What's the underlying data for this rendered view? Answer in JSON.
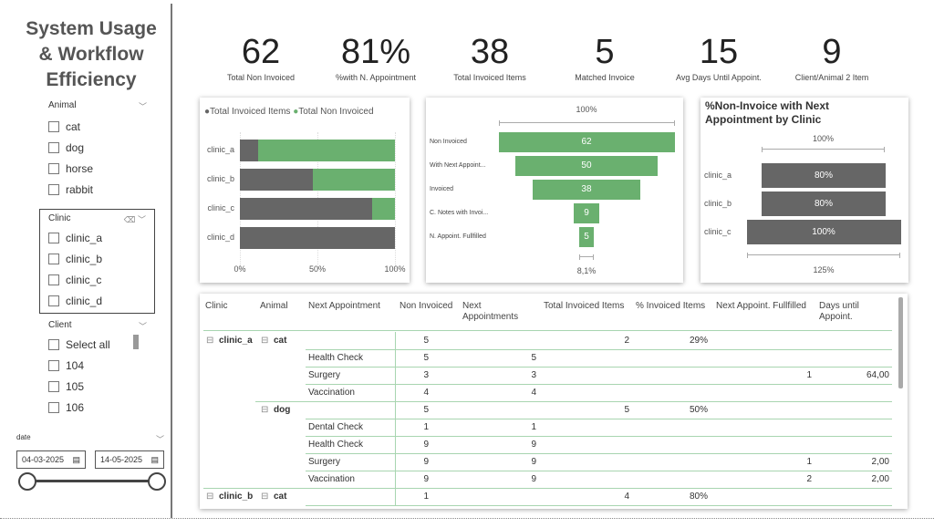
{
  "title": "System Usage & Workflow Efficiency",
  "slicers": {
    "animal": {
      "label": "Animal",
      "items": [
        "cat",
        "dog",
        "horse",
        "rabbit"
      ]
    },
    "clinic": {
      "label": "Clinic",
      "items": [
        "clinic_a",
        "clinic_b",
        "clinic_c",
        "clinic_d"
      ]
    },
    "client": {
      "label": "Client",
      "items": [
        "Select all",
        "104",
        "105",
        "106"
      ]
    },
    "date": {
      "label": "date",
      "start": "04-03-2025",
      "end": "14-05-2025"
    }
  },
  "kpis": [
    {
      "value": "62",
      "label": "Total Non Invoiced"
    },
    {
      "value": "81%",
      "label": "%with N. Appointment"
    },
    {
      "value": "38",
      "label": "Total Invoiced Items"
    },
    {
      "value": "5",
      "label": "Matched Invoice"
    },
    {
      "value": "15",
      "label": "Avg Days Until Appoint."
    },
    {
      "value": "9",
      "label": "Client/Animal 2 Item"
    }
  ],
  "chart_data": [
    {
      "type": "bar",
      "stacked": "100%",
      "categories": [
        "clinic_a",
        "clinic_b",
        "clinic_c",
        "clinic_d"
      ],
      "series": [
        {
          "name": "Total Invoiced Items",
          "color": "#666666",
          "values": [
            0.12,
            0.47,
            0.85,
            1.0
          ]
        },
        {
          "name": "Total Non Invoiced",
          "color": "#6ab06f",
          "values": [
            0.88,
            0.53,
            0.15,
            0.0
          ]
        }
      ],
      "xticks": [
        "0%",
        "50%",
        "100%"
      ],
      "legend": "top-left"
    },
    {
      "type": "funnel",
      "categories": [
        "Non Invoiced",
        "With Next Appoint...",
        "Invoiced",
        "C. Notes with Invoi...",
        "N. Appoint. Fullfilled"
      ],
      "values": [
        62,
        50,
        38,
        9,
        5
      ],
      "top_label": "100%",
      "bottom_label": "8,1%",
      "color": "#6ab06f"
    },
    {
      "type": "bar",
      "title": "%Non-Invoice with Next Appointment by Clinic",
      "categories": [
        "clinic_a",
        "clinic_b",
        "clinic_c"
      ],
      "values": [
        80,
        80,
        100
      ],
      "labels": [
        "80%",
        "80%",
        "100%"
      ],
      "top_label": "100%",
      "bottom_label": "125%",
      "color": "#666666"
    }
  ],
  "table": {
    "headers": [
      "Clinic",
      "Animal",
      "Next Appointment",
      "Non Invoiced",
      "Next Appointments",
      "Total Invoiced Items",
      "% Invoiced Items",
      "Next Appoint. Fullfilled",
      "Days until Appoint."
    ],
    "rows": [
      [
        "clinic_a",
        "cat",
        "",
        "5",
        "",
        "2",
        "29%",
        "",
        ""
      ],
      [
        "",
        "",
        "Health Check",
        "5",
        "5",
        "",
        "",
        "",
        ""
      ],
      [
        "",
        "",
        "Surgery",
        "3",
        "3",
        "",
        "",
        "1",
        "64,00"
      ],
      [
        "",
        "",
        "Vaccination",
        "4",
        "4",
        "",
        "",
        "",
        ""
      ],
      [
        "",
        "dog",
        "",
        "5",
        "",
        "5",
        "50%",
        "",
        ""
      ],
      [
        "",
        "",
        "Dental Check",
        "1",
        "1",
        "",
        "",
        "",
        ""
      ],
      [
        "",
        "",
        "Health Check",
        "9",
        "9",
        "",
        "",
        "",
        ""
      ],
      [
        "",
        "",
        "Surgery",
        "9",
        "9",
        "",
        "",
        "1",
        "2,00"
      ],
      [
        "",
        "",
        "Vaccination",
        "9",
        "9",
        "",
        "",
        "2",
        "2,00"
      ],
      [
        "clinic_b",
        "cat",
        "",
        "1",
        "",
        "4",
        "80%",
        "",
        ""
      ]
    ]
  }
}
